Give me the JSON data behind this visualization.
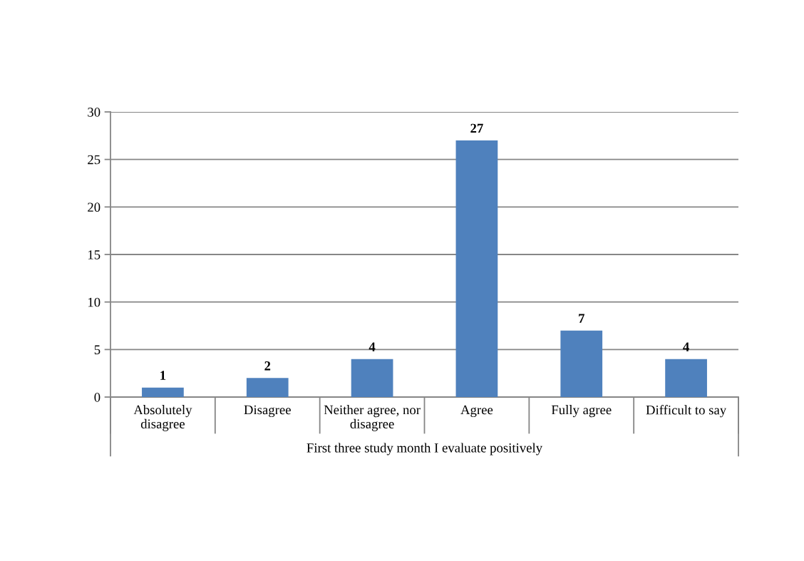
{
  "chart_data": {
    "type": "bar",
    "categories": [
      "Absolutely disagree",
      "Disagree",
      "Neither agree, nor disagree",
      "Agree",
      "Fully agree",
      "Difficult to say"
    ],
    "values": [
      1,
      2,
      4,
      27,
      7,
      4
    ],
    "color": "#4f81bd",
    "xlabel": "First three study month I evaluate positively",
    "ylim": [
      0,
      30
    ],
    "yticks": [
      0,
      5,
      10,
      15,
      20,
      25,
      30
    ],
    "grid": "y",
    "data_labels": true
  }
}
